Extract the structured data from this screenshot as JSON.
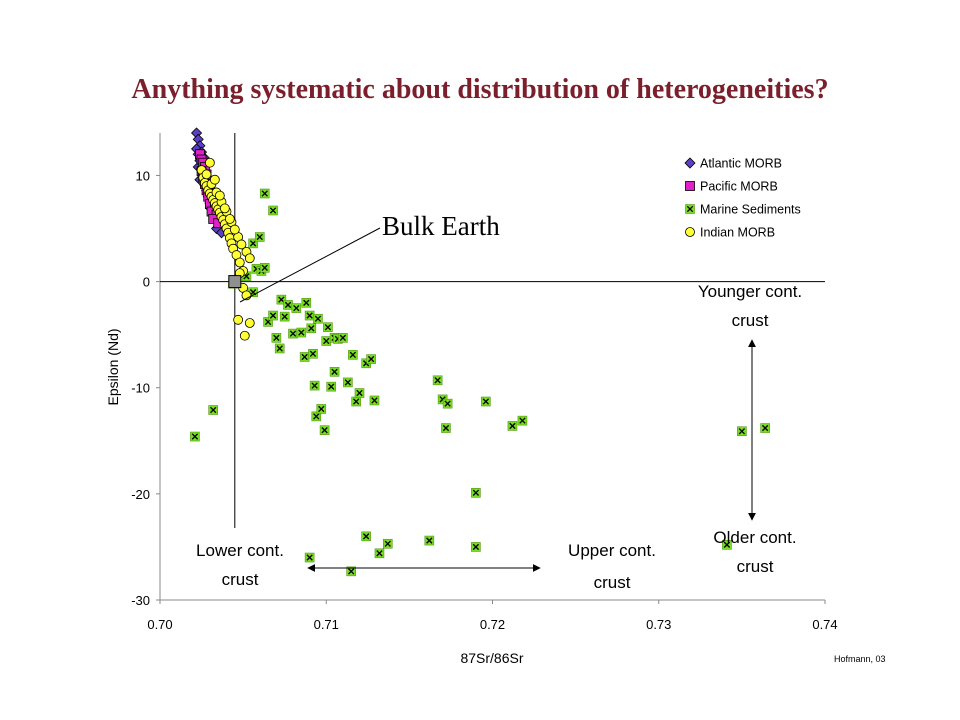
{
  "slide": {
    "title": "Anything systematic about distribution of heterogeneities?",
    "credit": "Hofmann, 03"
  },
  "chart_data": {
    "type": "scatter",
    "title": "",
    "xlabel": "87Sr/86Sr",
    "ylabel": "Epsilon (Nd)",
    "xlim": [
      0.7,
      0.74
    ],
    "ylim": [
      -30,
      14
    ],
    "xticks": [
      "0.70",
      "0.71",
      "0.72",
      "0.73",
      "0.74"
    ],
    "xtick_values": [
      0.7,
      0.71,
      0.72,
      0.73,
      0.74
    ],
    "yticks": [
      "10",
      "0",
      "-10",
      "-20",
      "-30"
    ],
    "ytick_values": [
      10,
      0,
      -10,
      -20,
      -30
    ],
    "grid": false,
    "legend_position": "top-right",
    "reference_lines": {
      "x": 0.7045,
      "y": 0
    },
    "bulk_earth": {
      "label": "Bulk Earth",
      "x": 0.7045,
      "y": 0
    },
    "series": [
      {
        "name": "Atlantic MORB",
        "marker": "diamond",
        "color": "#5b3fc4",
        "x": [
          0.7022,
          0.7023,
          0.7024,
          0.7022,
          0.7023,
          0.7025,
          0.7024,
          0.7026,
          0.7023,
          0.7025,
          0.7027,
          0.7026,
          0.7028,
          0.7024,
          0.7029,
          0.7027,
          0.703,
          0.7028,
          0.7031,
          0.7029,
          0.7032,
          0.703,
          0.7033,
          0.7031,
          0.7034,
          0.7033,
          0.7035,
          0.7036,
          0.7034,
          0.7037,
          0.7032,
          0.703,
          0.7025,
          0.7027
        ],
        "y": [
          14.0,
          13.4,
          12.8,
          12.5,
          12.0,
          11.8,
          11.4,
          11.0,
          10.8,
          10.6,
          10.3,
          10.0,
          9.8,
          9.6,
          9.4,
          9.1,
          8.9,
          8.6,
          8.3,
          8.0,
          7.7,
          7.4,
          7.1,
          6.8,
          6.5,
          6.2,
          5.8,
          5.4,
          5.0,
          4.6,
          7.0,
          8.2,
          12.2,
          11.6
        ]
      },
      {
        "name": "Pacific MORB",
        "marker": "square",
        "color": "#e020c8",
        "x": [
          0.7024,
          0.7025,
          0.7026,
          0.7027,
          0.7025,
          0.7028,
          0.7026,
          0.7029,
          0.7027,
          0.703,
          0.7028,
          0.7031,
          0.7029,
          0.7032,
          0.703,
          0.7033,
          0.7031,
          0.7034,
          0.7032,
          0.7035
        ],
        "y": [
          12.0,
          11.5,
          11.2,
          10.8,
          10.4,
          10.1,
          9.8,
          9.5,
          9.2,
          8.9,
          8.6,
          8.3,
          8.0,
          7.6,
          7.3,
          7.0,
          6.6,
          6.3,
          5.9,
          5.5
        ]
      },
      {
        "name": "Marine Sediments",
        "marker": "x-square",
        "color": "#77dd22",
        "x": [
          0.7021,
          0.7032,
          0.7044,
          0.7052,
          0.7056,
          0.7058,
          0.7061,
          0.7063,
          0.7068,
          0.7056,
          0.706,
          0.7063,
          0.7065,
          0.7068,
          0.707,
          0.7072,
          0.7073,
          0.7075,
          0.7077,
          0.708,
          0.7082,
          0.7085,
          0.7087,
          0.7088,
          0.709,
          0.7091,
          0.7092,
          0.7093,
          0.7094,
          0.7095,
          0.7097,
          0.7099,
          0.71,
          0.7101,
          0.7103,
          0.7105,
          0.7107,
          0.711,
          0.7113,
          0.7116,
          0.7118,
          0.712,
          0.7124,
          0.7127,
          0.7129,
          0.7132,
          0.7137,
          0.7115,
          0.7124,
          0.7162,
          0.7167,
          0.717,
          0.7172,
          0.7173,
          0.719,
          0.7196,
          0.7212,
          0.7218,
          0.719,
          0.7341,
          0.735,
          0.7364,
          0.709,
          0.7105
        ],
        "y": [
          -14.6,
          -12.1,
          -0.2,
          0.5,
          -1.0,
          1.2,
          1.0,
          1.3,
          6.7,
          3.6,
          4.2,
          8.3,
          -3.8,
          -3.2,
          -5.3,
          -6.3,
          -1.7,
          -3.3,
          -2.2,
          -4.9,
          -2.5,
          -4.8,
          -7.1,
          -2.0,
          -3.2,
          -4.4,
          -6.8,
          -9.8,
          -12.7,
          -3.5,
          -12.0,
          -14.0,
          -5.6,
          -4.3,
          -9.9,
          -5.3,
          -5.4,
          -5.3,
          -9.5,
          -6.9,
          -11.3,
          -10.5,
          -7.7,
          -7.3,
          -11.2,
          -25.6,
          -24.7,
          -27.3,
          -24.0,
          -24.4,
          -9.3,
          -11.1,
          -13.8,
          -11.5,
          -19.9,
          -11.3,
          -13.6,
          -13.1,
          -25.0,
          -24.8,
          -14.1,
          -13.8,
          -26.0,
          -8.5
        ]
      },
      {
        "name": "Indian MORB",
        "marker": "circle",
        "color": "#ffff33",
        "x": [
          0.7025,
          0.7026,
          0.7027,
          0.7028,
          0.7029,
          0.703,
          0.7031,
          0.7032,
          0.7033,
          0.7034,
          0.7035,
          0.7036,
          0.7037,
          0.7038,
          0.7039,
          0.704,
          0.7041,
          0.7042,
          0.7043,
          0.7044,
          0.7046,
          0.7048,
          0.705,
          0.7028,
          0.7031,
          0.7034,
          0.7037,
          0.704,
          0.7043,
          0.7047,
          0.7049,
          0.7052,
          0.7054,
          0.705,
          0.7052,
          0.7054,
          0.703,
          0.7033,
          0.7036,
          0.7039,
          0.7042,
          0.7045,
          0.7048,
          0.7047,
          0.7051
        ],
        "y": [
          10.5,
          9.8,
          9.3,
          9.0,
          8.6,
          8.3,
          8.0,
          7.7,
          7.4,
          7.1,
          6.8,
          6.5,
          6.1,
          5.8,
          5.4,
          5.0,
          4.6,
          4.1,
          3.6,
          3.1,
          2.5,
          1.8,
          1.0,
          10.1,
          9.2,
          8.4,
          7.5,
          6.6,
          5.6,
          4.2,
          3.5,
          2.8,
          2.2,
          -0.6,
          -1.3,
          -3.9,
          11.2,
          9.6,
          8.1,
          6.9,
          5.9,
          4.9,
          0.8,
          -3.6,
          -5.1
        ]
      }
    ],
    "annotations": [
      {
        "text": [
          "Lower cont.",
          "crust"
        ]
      },
      {
        "text": [
          "Upper cont.",
          "crust"
        ]
      },
      {
        "text": [
          "Younger cont.",
          "crust"
        ]
      },
      {
        "text": [
          "Older cont.",
          "crust"
        ]
      }
    ]
  }
}
